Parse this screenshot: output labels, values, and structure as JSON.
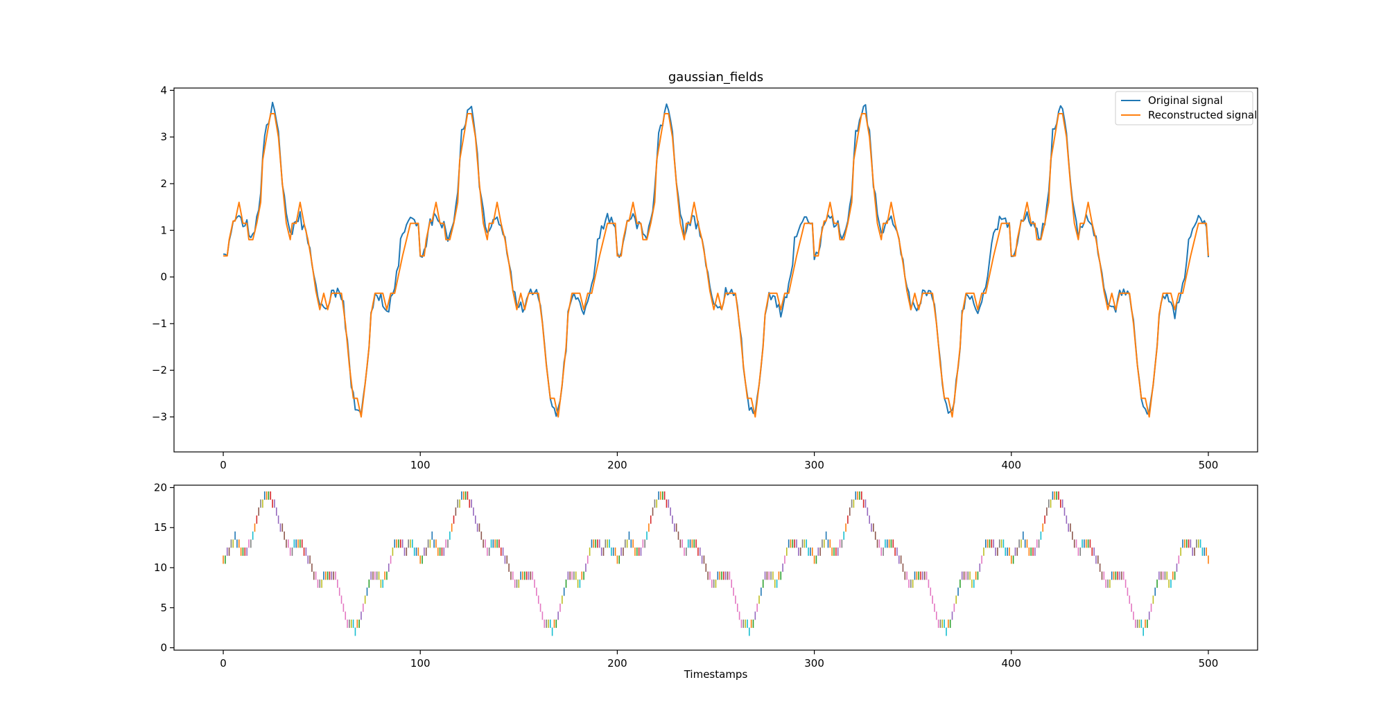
{
  "colors": {
    "original": "#1f77b4",
    "reconstructed": "#ff7f0e",
    "spike_palette": [
      "#1f77b4",
      "#ff7f0e",
      "#2ca02c",
      "#d62728",
      "#9467bd",
      "#8c564b",
      "#e377c2",
      "#7f7f7f",
      "#bcbd22",
      "#17becf"
    ]
  },
  "chart_data": [
    {
      "type": "line",
      "title": "gaussian_fields",
      "xlabel": "",
      "ylabel": "",
      "xlim": [
        -25,
        525
      ],
      "ylim": [
        -3.75,
        4.05
      ],
      "xticks": [
        0,
        100,
        200,
        300,
        400,
        500
      ],
      "yticks": [
        -3,
        -2,
        -1,
        0,
        1,
        2,
        3,
        4
      ],
      "xtick_labels": [
        "0",
        "100",
        "200",
        "300",
        "400",
        "500"
      ],
      "ytick_labels": [
        "−3",
        "−2",
        "−1",
        "0",
        "1",
        "2",
        "3",
        "4"
      ],
      "legend_position": "top-right",
      "grid": false,
      "period": 100,
      "series": [
        {
          "name": "Original signal",
          "x": [
            0,
            2,
            5,
            6,
            8,
            10,
            12,
            14,
            15,
            17,
            19,
            20,
            21,
            23,
            25,
            26,
            28,
            30,
            32,
            34,
            35,
            37,
            39,
            40,
            41,
            43,
            45,
            47,
            49,
            50,
            53,
            55,
            57,
            59,
            61,
            63,
            65,
            67,
            69,
            70,
            72,
            74,
            75,
            77,
            80,
            83,
            85,
            87,
            89,
            90,
            93,
            95,
            97,
            99
          ],
          "y": [
            0.45,
            0.5,
            1.2,
            1.2,
            1.35,
            1.1,
            1.15,
            0.8,
            0.9,
            1.2,
            1.8,
            2.5,
            3.1,
            3.3,
            3.7,
            3.6,
            3.1,
            2.0,
            1.4,
            0.9,
            1.0,
            1.2,
            1.3,
            1.1,
            1.1,
            0.8,
            0.3,
            -0.2,
            -0.6,
            -0.6,
            -0.7,
            -0.3,
            -0.35,
            -0.3,
            -0.6,
            -1.4,
            -2.3,
            -2.8,
            -2.9,
            -2.9,
            -2.3,
            -1.5,
            -0.8,
            -0.4,
            -0.45,
            -0.8,
            -0.5,
            -0.2,
            0.3,
            0.8,
            1.1,
            1.3,
            1.2,
            1.1
          ]
        },
        {
          "name": "Reconstructed signal",
          "x": [
            0,
            2,
            3,
            5,
            6,
            8,
            10,
            12,
            13,
            15,
            17,
            19,
            20,
            22,
            24,
            26,
            28,
            30,
            32,
            34,
            35,
            37,
            39,
            41,
            43,
            45,
            47,
            49,
            51,
            53,
            55,
            58,
            60,
            62,
            64,
            66,
            68,
            70,
            72,
            74,
            75,
            77,
            79,
            81,
            83,
            85,
            87,
            89,
            91,
            93,
            95,
            97,
            99
          ],
          "y": [
            0.45,
            0.45,
            0.8,
            1.2,
            1.2,
            1.6,
            1.15,
            1.15,
            0.8,
            0.8,
            1.15,
            1.6,
            2.5,
            3.0,
            3.5,
            3.5,
            3.0,
            2.0,
            1.15,
            0.8,
            1.15,
            1.15,
            1.6,
            1.15,
            0.8,
            0.3,
            -0.3,
            -0.7,
            -0.35,
            -0.7,
            -0.35,
            -0.35,
            -0.35,
            -1.0,
            -1.9,
            -2.6,
            -2.6,
            -3.0,
            -2.3,
            -1.5,
            -0.8,
            -0.35,
            -0.35,
            -0.35,
            -0.7,
            -0.35,
            -0.35,
            0.05,
            0.45,
            0.8,
            1.15,
            1.15,
            1.15
          ]
        }
      ]
    },
    {
      "type": "scatter",
      "xlabel": "Timestamps",
      "ylabel": "",
      "xlim": [
        -25,
        525
      ],
      "ylim": [
        -0.3,
        20.3
      ],
      "xticks": [
        0,
        100,
        200,
        300,
        400,
        500
      ],
      "yticks": [
        0,
        5,
        10,
        15,
        20
      ],
      "xtick_labels": [
        "0",
        "100",
        "200",
        "300",
        "400",
        "500"
      ],
      "ytick_labels": [
        "0",
        "5",
        "10",
        "15",
        "20"
      ],
      "grid": false,
      "marker": "vertical-line",
      "period": 100,
      "series": [
        {
          "x": [
            0,
            1,
            2,
            3,
            4,
            5,
            6,
            7,
            8,
            9,
            10,
            11,
            12,
            13,
            14,
            15,
            16,
            17,
            18,
            19,
            20,
            21,
            22,
            23,
            24,
            25,
            26,
            27,
            28,
            29,
            30,
            31,
            32,
            33,
            34,
            35,
            36,
            37,
            38,
            39,
            40,
            41,
            42,
            43,
            44,
            45,
            46,
            47,
            48,
            49,
            50,
            51,
            52,
            53,
            54,
            55,
            56,
            57,
            58,
            59,
            60,
            61,
            62,
            63,
            64,
            65,
            66,
            67,
            68,
            69,
            70,
            71,
            72,
            73,
            74,
            75,
            76,
            77,
            78,
            79,
            80,
            81,
            82,
            83,
            84,
            85,
            86,
            87,
            88,
            89,
            90,
            91,
            92,
            93,
            94,
            95,
            96,
            97,
            98,
            99
          ],
          "y": [
            11,
            11,
            12,
            12,
            13,
            13,
            14,
            13,
            13,
            12,
            12,
            12,
            12,
            13,
            13,
            14,
            15,
            16,
            17,
            18,
            18,
            19,
            19,
            19,
            19,
            18,
            18,
            17,
            16,
            15,
            15,
            14,
            13,
            13,
            12,
            12,
            13,
            13,
            13,
            13,
            13,
            12,
            12,
            11,
            11,
            10,
            9,
            9,
            8,
            8,
            8,
            9,
            9,
            9,
            9,
            9,
            9,
            9,
            8,
            7,
            6,
            5,
            4,
            3,
            3,
            3,
            3,
            2,
            3,
            3,
            4,
            5,
            6,
            7,
            8,
            9,
            9,
            9,
            9,
            9,
            8,
            8,
            9,
            9,
            10,
            11,
            12,
            13,
            13,
            13,
            13,
            13,
            12,
            12,
            13,
            13,
            13,
            12,
            12,
            12
          ]
        }
      ]
    }
  ]
}
